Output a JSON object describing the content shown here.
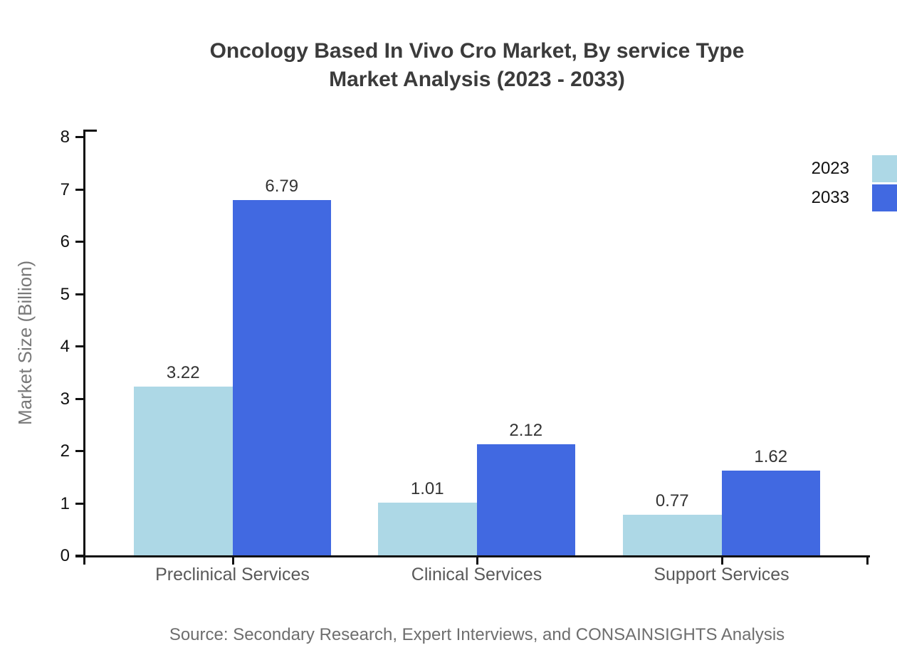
{
  "header": {
    "title_line1": "Oncology Based In Vivo Cro Market, By service Type",
    "title_line2": "Market Analysis (2023 - 2033)"
  },
  "legend": {
    "items": [
      {
        "label": "2023",
        "color": "#add8e6"
      },
      {
        "label": "2033",
        "color": "#4169e1"
      }
    ]
  },
  "chart_data": {
    "type": "bar",
    "title": "Oncology Based In Vivo Cro Market, By service Type Market Analysis (2023 - 2033)",
    "categories": [
      "Preclinical Services",
      "Clinical Services",
      "Support Services"
    ],
    "series": [
      {
        "name": "2023",
        "color": "#add8e6",
        "values": [
          3.22,
          1.01,
          0.77
        ]
      },
      {
        "name": "2033",
        "color": "#4169e1",
        "values": [
          6.79,
          2.12,
          1.62
        ]
      }
    ],
    "xlabel": "",
    "ylabel": "Market Size (Billion)",
    "ylim": [
      0,
      8
    ],
    "yticks": [
      0,
      1,
      2,
      3,
      4,
      5,
      6,
      7,
      8
    ],
    "grid": false,
    "legend_position": "top-right",
    "value_labels": true,
    "value_label_format": "2dp"
  },
  "footer": {
    "source": "Source: Secondary Research, Expert Interviews, and CONSAINSIGHTS Analysis"
  }
}
